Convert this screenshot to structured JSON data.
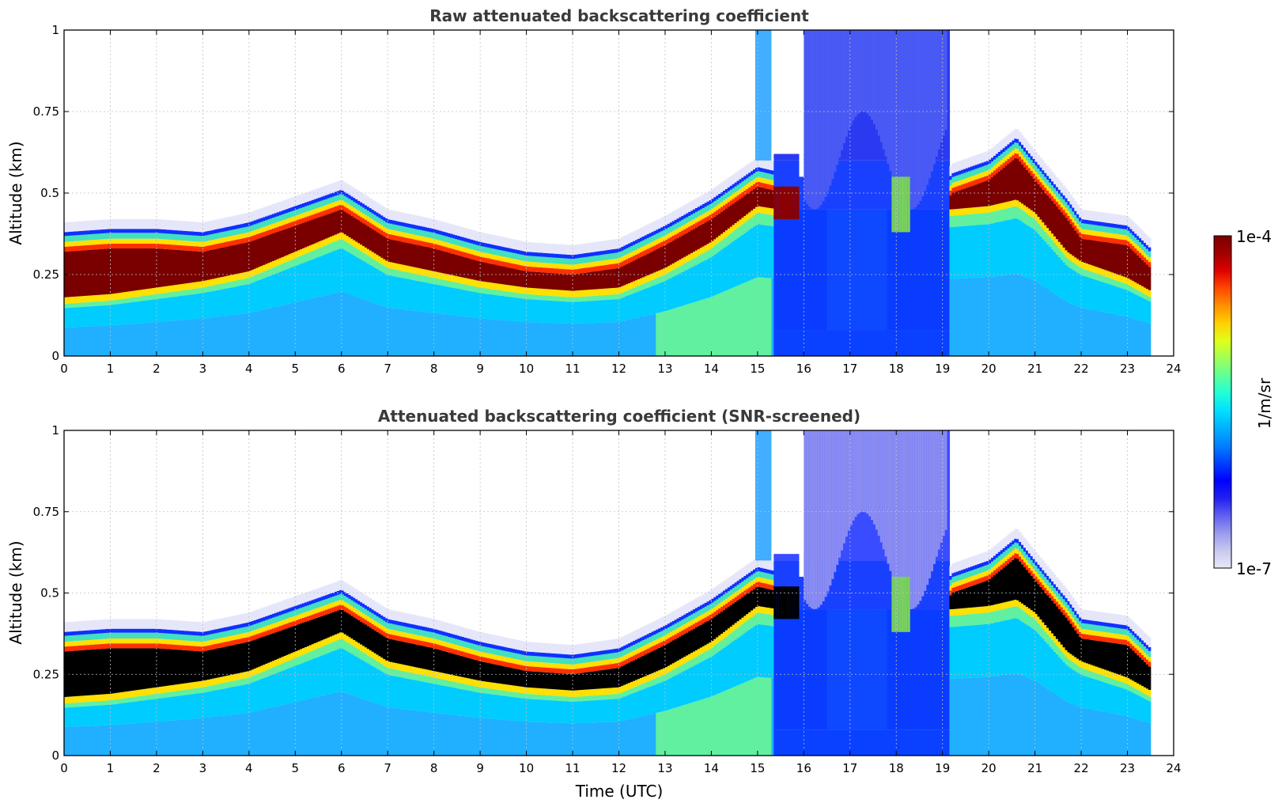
{
  "chart_data": [
    {
      "type": "heatmap",
      "id": "raw",
      "title": "Raw attenuated backscattering coefficient",
      "xlabel": "",
      "ylabel": "Altitude (km)",
      "xlim": [
        0,
        24
      ],
      "ylim": [
        0,
        1
      ],
      "x_ticks": [
        "0",
        "1",
        "2",
        "3",
        "4",
        "5",
        "6",
        "7",
        "8",
        "9",
        "10",
        "11",
        "12",
        "13",
        "14",
        "15",
        "16",
        "17",
        "18",
        "19",
        "20",
        "21",
        "22",
        "23",
        "24"
      ],
      "y_ticks": [
        "0",
        "0.25",
        "0.5",
        "0.75",
        "1"
      ],
      "grid": true,
      "data_end_hour": 23.5,
      "layer_top_km": [
        [
          0,
          0.38
        ],
        [
          1,
          0.39
        ],
        [
          2,
          0.39
        ],
        [
          3,
          0.38
        ],
        [
          4,
          0.41
        ],
        [
          5,
          0.46
        ],
        [
          6,
          0.51
        ],
        [
          7,
          0.42
        ],
        [
          8,
          0.39
        ],
        [
          9,
          0.35
        ],
        [
          10,
          0.32
        ],
        [
          11,
          0.31
        ],
        [
          12,
          0.33
        ],
        [
          13,
          0.4
        ],
        [
          14,
          0.48
        ],
        [
          15,
          0.58
        ],
        [
          15.9,
          0.55
        ],
        [
          16,
          0.5
        ],
        [
          18,
          0.5
        ],
        [
          19,
          0.5
        ],
        [
          19.2,
          0.56
        ],
        [
          20,
          0.6
        ],
        [
          20.6,
          0.67
        ],
        [
          21,
          0.6
        ],
        [
          21.7,
          0.48
        ],
        [
          22,
          0.42
        ],
        [
          23,
          0.4
        ],
        [
          23.5,
          0.33
        ]
      ],
      "layer_base_km": [
        [
          0,
          0.16
        ],
        [
          1,
          0.17
        ],
        [
          2,
          0.19
        ],
        [
          3,
          0.21
        ],
        [
          4,
          0.24
        ],
        [
          5,
          0.3
        ],
        [
          6,
          0.36
        ],
        [
          7,
          0.27
        ],
        [
          8,
          0.24
        ],
        [
          9,
          0.21
        ],
        [
          10,
          0.19
        ],
        [
          11,
          0.18
        ],
        [
          12,
          0.19
        ],
        [
          13,
          0.25
        ],
        [
          14,
          0.33
        ],
        [
          15,
          0.44
        ],
        [
          15.9,
          0.42
        ],
        [
          19.2,
          0.43
        ],
        [
          20,
          0.44
        ],
        [
          20.6,
          0.46
        ],
        [
          21,
          0.42
        ],
        [
          21.7,
          0.3
        ],
        [
          22,
          0.27
        ],
        [
          23,
          0.22
        ],
        [
          23.5,
          0.18
        ]
      ],
      "clear_sky_above": true
    },
    {
      "type": "heatmap",
      "id": "screened",
      "title": "Attenuated backscattering coefficient (SNR-screened)",
      "xlabel": "Time (UTC)",
      "ylabel": "Altitude (km)",
      "xlim": [
        0,
        24
      ],
      "ylim": [
        0,
        1
      ],
      "x_ticks": [
        "0",
        "1",
        "2",
        "3",
        "4",
        "5",
        "6",
        "7",
        "8",
        "9",
        "10",
        "11",
        "12",
        "13",
        "14",
        "15",
        "16",
        "17",
        "18",
        "19",
        "20",
        "21",
        "22",
        "23",
        "24"
      ],
      "y_ticks": [
        "0",
        "0.25",
        "0.5",
        "0.75",
        "1"
      ],
      "grid": true,
      "data_end_hour": 23.5,
      "layer_top_km": [
        [
          0,
          0.38
        ],
        [
          1,
          0.39
        ],
        [
          2,
          0.39
        ],
        [
          3,
          0.38
        ],
        [
          4,
          0.41
        ],
        [
          5,
          0.46
        ],
        [
          6,
          0.51
        ],
        [
          7,
          0.42
        ],
        [
          8,
          0.39
        ],
        [
          9,
          0.35
        ],
        [
          10,
          0.32
        ],
        [
          11,
          0.31
        ],
        [
          12,
          0.33
        ],
        [
          13,
          0.4
        ],
        [
          14,
          0.48
        ],
        [
          15,
          0.58
        ],
        [
          15.9,
          0.55
        ],
        [
          16,
          0.5
        ],
        [
          18,
          0.5
        ],
        [
          19,
          0.5
        ],
        [
          19.2,
          0.56
        ],
        [
          20,
          0.6
        ],
        [
          20.6,
          0.67
        ],
        [
          21,
          0.6
        ],
        [
          21.7,
          0.48
        ],
        [
          22,
          0.42
        ],
        [
          23,
          0.4
        ],
        [
          23.5,
          0.33
        ]
      ],
      "layer_base_km": [
        [
          0,
          0.16
        ],
        [
          1,
          0.17
        ],
        [
          2,
          0.19
        ],
        [
          3,
          0.21
        ],
        [
          4,
          0.24
        ],
        [
          5,
          0.3
        ],
        [
          6,
          0.36
        ],
        [
          7,
          0.27
        ],
        [
          8,
          0.24
        ],
        [
          9,
          0.21
        ],
        [
          10,
          0.19
        ],
        [
          11,
          0.18
        ],
        [
          12,
          0.19
        ],
        [
          13,
          0.25
        ],
        [
          14,
          0.33
        ],
        [
          15,
          0.44
        ],
        [
          15.9,
          0.42
        ],
        [
          19.2,
          0.43
        ],
        [
          20,
          0.44
        ],
        [
          20.6,
          0.46
        ],
        [
          21,
          0.42
        ],
        [
          21.7,
          0.3
        ],
        [
          22,
          0.27
        ],
        [
          23,
          0.22
        ],
        [
          23.5,
          0.18
        ]
      ],
      "saturated_color": "#000000"
    }
  ],
  "colorbar": {
    "label": "1/m/sr",
    "max_label": "1e-4",
    "min_label": "1e-7",
    "colors": [
      "#e8e8f8",
      "#c8c8f0",
      "#9a9aee",
      "#6060f0",
      "#2020f0",
      "#0000ff",
      "#0040ff",
      "#0080ff",
      "#00b0ff",
      "#00e0ff",
      "#20ffd8",
      "#60ff98",
      "#a0ff58",
      "#e0ff18",
      "#ffd000",
      "#ff9000",
      "#ff4800",
      "#e00000",
      "#a00000",
      "#7a0000"
    ]
  },
  "colors": {
    "cloud": "#1030ff",
    "cloud_faint": "#b8b8f4",
    "sky_light": "#e6e6fa",
    "aerosol_low": "#20b0ff",
    "aerosol_mid": "#00ccff",
    "green": "#60f0a0",
    "yellow": "#ffe000",
    "red": "#ff3000",
    "saturation_raw": "#7a0000",
    "saturation_screened": "#000000",
    "title": "#3a3a3a",
    "grid": "#c0c0c0"
  }
}
